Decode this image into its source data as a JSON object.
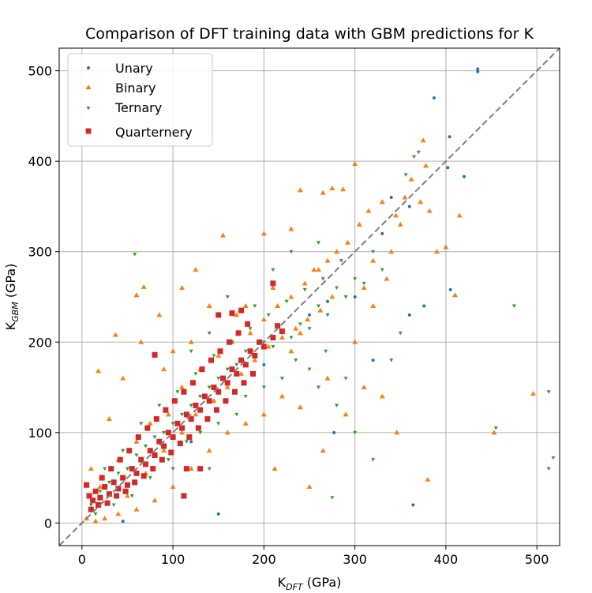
{
  "chart_data": {
    "type": "scatter",
    "title": "Comparison of DFT training data with GBM predictions for K",
    "xlabel_main": "K",
    "xlabel_sub": "DFT",
    "xlabel_unit": " (GPa)",
    "ylabel_main": "K",
    "ylabel_sub": "GBM",
    "ylabel_unit": " (GPa)",
    "xlim": [
      -25,
      525
    ],
    "ylim": [
      -25,
      525
    ],
    "xticks": [
      0,
      100,
      200,
      300,
      400,
      500
    ],
    "yticks": [
      0,
      100,
      200,
      300,
      400,
      500
    ],
    "grid": true,
    "legend_position": "top-left",
    "reference_line": {
      "from": [
        -25,
        -25
      ],
      "to": [
        525,
        525
      ],
      "style": "dashed",
      "color": "#7f7f7f"
    },
    "series": [
      {
        "name": "Unary",
        "marker": "circle",
        "color": "#1f77b4",
        "points": [
          [
            435,
            502
          ],
          [
            435,
            499
          ],
          [
            387,
            470
          ],
          [
            404,
            427
          ],
          [
            402,
            393
          ],
          [
            364,
            20
          ],
          [
            340,
            360
          ],
          [
            376,
            240
          ],
          [
            405,
            258
          ],
          [
            277,
            100
          ],
          [
            150,
            10
          ],
          [
            300,
            250
          ],
          [
            320,
            180
          ],
          [
            360,
            350
          ],
          [
            330,
            320
          ],
          [
            360,
            230
          ],
          [
            420,
            383
          ],
          [
            45,
            2
          ],
          [
            120,
            90
          ],
          [
            200,
            175
          ],
          [
            250,
            230
          ],
          [
            270,
            245
          ]
        ]
      },
      {
        "name": "Binary",
        "marker": "triangle",
        "color": "#ff7f0e",
        "points": [
          [
            300,
            397
          ],
          [
            375,
            423
          ],
          [
            378,
            395
          ],
          [
            415,
            340
          ],
          [
            275,
            370
          ],
          [
            287,
            369
          ],
          [
            240,
            368
          ],
          [
            265,
            365
          ],
          [
            155,
            318
          ],
          [
            200,
            320
          ],
          [
            230,
            325
          ],
          [
            60,
            252
          ],
          [
            68,
            261
          ],
          [
            18,
            168
          ],
          [
            37,
            208
          ],
          [
            80,
            185
          ],
          [
            410,
            252
          ],
          [
            496,
            143
          ],
          [
            453,
            100
          ],
          [
            380,
            48
          ],
          [
            330,
            140
          ],
          [
            346,
            100
          ],
          [
            240,
            128
          ],
          [
            390,
            300
          ],
          [
            400,
            305
          ],
          [
            340,
            300
          ],
          [
            320,
            290
          ],
          [
            310,
            260
          ],
          [
            350,
            330
          ],
          [
            260,
            280
          ],
          [
            210,
            260
          ],
          [
            180,
            240
          ],
          [
            170,
            230
          ],
          [
            140,
            240
          ],
          [
            120,
            200
          ],
          [
            100,
            190
          ],
          [
            90,
            170
          ],
          [
            30,
            115
          ],
          [
            10,
            60
          ],
          [
            5,
            5
          ],
          [
            20,
            40
          ],
          [
            40,
            70
          ],
          [
            60,
            90
          ],
          [
            75,
            110
          ],
          [
            95,
            120
          ],
          [
            110,
            150
          ],
          [
            130,
            170
          ],
          [
            150,
            185
          ],
          [
            165,
            200
          ],
          [
            185,
            210
          ],
          [
            200,
            225
          ],
          [
            215,
            240
          ],
          [
            230,
            250
          ],
          [
            245,
            265
          ],
          [
            255,
            280
          ],
          [
            270,
            290
          ],
          [
            280,
            300
          ],
          [
            292,
            310
          ],
          [
            305,
            330
          ],
          [
            315,
            345
          ],
          [
            330,
            355
          ],
          [
            345,
            340
          ],
          [
            355,
            360
          ],
          [
            362,
            380
          ],
          [
            372,
            355
          ],
          [
            382,
            345
          ],
          [
            212,
            60
          ],
          [
            250,
            40
          ],
          [
            265,
            80
          ],
          [
            290,
            120
          ],
          [
            310,
            150
          ],
          [
            270,
            160
          ],
          [
            230,
            190
          ],
          [
            220,
            140
          ],
          [
            200,
            120
          ],
          [
            180,
            110
          ],
          [
            160,
            100
          ],
          [
            140,
            80
          ],
          [
            120,
            60
          ],
          [
            100,
            40
          ],
          [
            80,
            25
          ],
          [
            60,
            15
          ],
          [
            40,
            10
          ],
          [
            25,
            5
          ],
          [
            15,
            2
          ],
          [
            50,
            30
          ],
          [
            70,
            55
          ],
          [
            90,
            80
          ],
          [
            110,
            100
          ],
          [
            125,
            120
          ],
          [
            145,
            135
          ],
          [
            160,
            150
          ],
          [
            175,
            165
          ],
          [
            190,
            180
          ],
          [
            205,
            195
          ],
          [
            220,
            205
          ],
          [
            235,
            215
          ],
          [
            248,
            225
          ],
          [
            262,
            235
          ],
          [
            275,
            250
          ],
          [
            45,
            160
          ],
          [
            65,
            200
          ],
          [
            85,
            230
          ],
          [
            110,
            260
          ],
          [
            125,
            280
          ],
          [
            240,
            210
          ],
          [
            300,
            200
          ],
          [
            320,
            240
          ],
          [
            335,
            270
          ]
        ]
      },
      {
        "name": "Ternary",
        "marker": "triangle-down",
        "color": "#2ca02c",
        "points": [
          [
            475,
            240
          ],
          [
            513,
            145
          ],
          [
            518,
            72
          ],
          [
            513,
            60
          ],
          [
            455,
            105
          ],
          [
            58,
            297
          ],
          [
            365,
            405
          ],
          [
            370,
            410
          ],
          [
            356,
            385
          ],
          [
            320,
            300
          ],
          [
            300,
            270
          ],
          [
            280,
            260
          ],
          [
            260,
            240
          ],
          [
            240,
            220
          ],
          [
            220,
            210
          ],
          [
            200,
            200
          ],
          [
            180,
            190
          ],
          [
            160,
            170
          ],
          [
            140,
            150
          ],
          [
            120,
            130
          ],
          [
            100,
            110
          ],
          [
            80,
            95
          ],
          [
            60,
            75
          ],
          [
            40,
            55
          ],
          [
            20,
            35
          ],
          [
            10,
            20
          ],
          [
            30,
            45
          ],
          [
            50,
            60
          ],
          [
            70,
            85
          ],
          [
            90,
            100
          ],
          [
            110,
            120
          ],
          [
            130,
            140
          ],
          [
            150,
            160
          ],
          [
            170,
            175
          ],
          [
            190,
            185
          ],
          [
            210,
            195
          ],
          [
            230,
            205
          ],
          [
            250,
            215
          ],
          [
            270,
            230
          ],
          [
            290,
            250
          ],
          [
            310,
            265
          ],
          [
            330,
            280
          ],
          [
            275,
            28
          ],
          [
            320,
            70
          ],
          [
            300,
            100
          ],
          [
            280,
            130
          ],
          [
            260,
            150
          ],
          [
            250,
            170
          ],
          [
            235,
            180
          ],
          [
            170,
            120
          ],
          [
            150,
            110
          ],
          [
            130,
            100
          ],
          [
            115,
            90
          ],
          [
            95,
            70
          ],
          [
            75,
            50
          ],
          [
            55,
            30
          ],
          [
            35,
            20
          ],
          [
            15,
            10
          ],
          [
            25,
            60
          ],
          [
            45,
            80
          ],
          [
            65,
            110
          ],
          [
            85,
            130
          ],
          [
            105,
            145
          ],
          [
            125,
            165
          ],
          [
            145,
            185
          ],
          [
            165,
            200
          ],
          [
            185,
            215
          ],
          [
            205,
            230
          ],
          [
            225,
            245
          ],
          [
            245,
            258
          ],
          [
            265,
            270
          ],
          [
            285,
            290
          ],
          [
            200,
            150
          ],
          [
            190,
            240
          ],
          [
            210,
            280
          ],
          [
            140,
            210
          ],
          [
            120,
            190
          ],
          [
            160,
            250
          ],
          [
            230,
            300
          ],
          [
            260,
            310
          ],
          [
            350,
            210
          ],
          [
            340,
            180
          ],
          [
            290,
            160
          ],
          [
            268,
            190
          ],
          [
            180,
            140
          ],
          [
            100,
            60
          ],
          [
            140,
            60
          ],
          [
            220,
            160
          ]
        ]
      },
      {
        "name": "Quarternery",
        "marker": "square",
        "color": "#d62728",
        "points": [
          [
            5,
            42
          ],
          [
            8,
            30
          ],
          [
            12,
            25
          ],
          [
            15,
            35
          ],
          [
            20,
            28
          ],
          [
            25,
            40
          ],
          [
            30,
            32
          ],
          [
            35,
            45
          ],
          [
            40,
            38
          ],
          [
            45,
            50
          ],
          [
            50,
            42
          ],
          [
            55,
            60
          ],
          [
            60,
            55
          ],
          [
            65,
            70
          ],
          [
            70,
            65
          ],
          [
            75,
            80
          ],
          [
            80,
            75
          ],
          [
            85,
            90
          ],
          [
            90,
            85
          ],
          [
            95,
            100
          ],
          [
            100,
            95
          ],
          [
            105,
            110
          ],
          [
            110,
            105
          ],
          [
            115,
            120
          ],
          [
            120,
            115
          ],
          [
            125,
            130
          ],
          [
            130,
            125
          ],
          [
            135,
            140
          ],
          [
            140,
            135
          ],
          [
            145,
            150
          ],
          [
            150,
            145
          ],
          [
            155,
            160
          ],
          [
            160,
            155
          ],
          [
            165,
            170
          ],
          [
            170,
            165
          ],
          [
            175,
            180
          ],
          [
            180,
            175
          ],
          [
            185,
            190
          ],
          [
            190,
            185
          ],
          [
            195,
            200
          ],
          [
            200,
            195
          ],
          [
            210,
            205
          ],
          [
            215,
            218
          ],
          [
            220,
            212
          ],
          [
            10,
            15
          ],
          [
            18,
            20
          ],
          [
            28,
            22
          ],
          [
            38,
            30
          ],
          [
            48,
            35
          ],
          [
            58,
            45
          ],
          [
            68,
            52
          ],
          [
            78,
            60
          ],
          [
            88,
            70
          ],
          [
            98,
            78
          ],
          [
            108,
            88
          ],
          [
            118,
            95
          ],
          [
            128,
            105
          ],
          [
            138,
            115
          ],
          [
            148,
            125
          ],
          [
            158,
            135
          ],
          [
            168,
            145
          ],
          [
            178,
            155
          ],
          [
            188,
            165
          ],
          [
            22,
            50
          ],
          [
            32,
            60
          ],
          [
            42,
            70
          ],
          [
            52,
            80
          ],
          [
            62,
            95
          ],
          [
            72,
            105
          ],
          [
            82,
            115
          ],
          [
            92,
            125
          ],
          [
            102,
            135
          ],
          [
            112,
            145
          ],
          [
            122,
            155
          ],
          [
            132,
            170
          ],
          [
            142,
            180
          ],
          [
            152,
            190
          ],
          [
            162,
            200
          ],
          [
            172,
            210
          ],
          [
            182,
            220
          ],
          [
            80,
            186
          ],
          [
            210,
            265
          ],
          [
            150,
            230
          ],
          [
            130,
            60
          ],
          [
            112,
            30
          ],
          [
            115,
            60
          ],
          [
            165,
            232
          ],
          [
            175,
            235
          ]
        ]
      }
    ]
  }
}
